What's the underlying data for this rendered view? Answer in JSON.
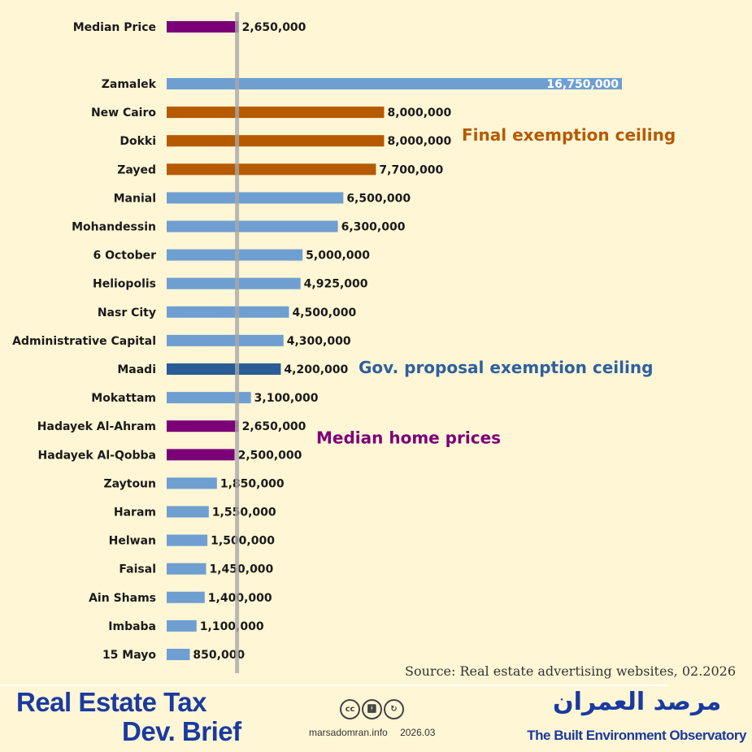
{
  "chart_data": {
    "type": "bar",
    "orientation": "horizontal",
    "title": "",
    "xlabel": "",
    "ylabel": "",
    "xlim": [
      0,
      16750000
    ],
    "reference_line": 2650000,
    "categories": [
      "Median Price",
      "Zamalek",
      "New Cairo",
      "Dokki",
      "Zayed",
      "Manial",
      "Mohandessin",
      "6 October",
      "Heliopolis",
      "Nasr City",
      "Administrative Capital",
      "Maadi",
      "Mokattam",
      "Hadayek Al-Ahram",
      "Hadayek Al-Qobba",
      "Zaytoun",
      "Haram",
      "Helwan",
      "Faisal",
      "Ain Shams",
      "Imbaba",
      "15 Mayo"
    ],
    "values": [
      2650000,
      16750000,
      8000000,
      8000000,
      7700000,
      6500000,
      6300000,
      5000000,
      4925000,
      4500000,
      4300000,
      4200000,
      3100000,
      2650000,
      2500000,
      1850000,
      1550000,
      1500000,
      1450000,
      1400000,
      1100000,
      850000
    ],
    "labels": [
      "2,650,000",
      "16,750,000",
      "8,000,000",
      "8,000,000",
      "7,700,000",
      "6,500,000",
      "6,300,000",
      "5,000,000",
      "4,925,000",
      "4,500,000",
      "4,300,000",
      "4,200,000",
      "3,100,000",
      "2,650,000",
      "2,500,000",
      "1,850,000",
      "1,550,000",
      "1,500,000",
      "1,450,000",
      "1,400,000",
      "1,100,000",
      "850,000"
    ],
    "bar_groups": [
      "median",
      "normal",
      "final",
      "final",
      "final",
      "normal",
      "normal",
      "normal",
      "normal",
      "normal",
      "normal",
      "gov",
      "normal",
      "median",
      "median",
      "normal",
      "normal",
      "normal",
      "normal",
      "normal",
      "normal",
      "normal"
    ],
    "colors": {
      "normal": "#6F9FD1",
      "final": "#B65A00",
      "gov": "#2A5C96",
      "median": "#7B0078",
      "refline": "#A8A8A8"
    },
    "annotations": [
      {
        "text": "Final exemption ceiling",
        "color": "#B65A00",
        "row": 3
      },
      {
        "text": "Gov. proposal exemption ceiling",
        "color": "#2E60A0",
        "row": 11
      },
      {
        "text": "Median home prices",
        "color": "#7B0078",
        "row": 14
      }
    ]
  },
  "source": "Source: Real estate advertising websites, 02.2026",
  "footer": {
    "brief_line1": "Real Estate Tax",
    "brief_line2": "Dev. Brief",
    "license_icons": [
      "cc",
      "by",
      "sa"
    ],
    "cc_text": "cc",
    "site": "marsadomran.info",
    "date": "2026.03",
    "arabic_name": "مرصد العمران",
    "org_name": "The Built Environment Observatory"
  }
}
